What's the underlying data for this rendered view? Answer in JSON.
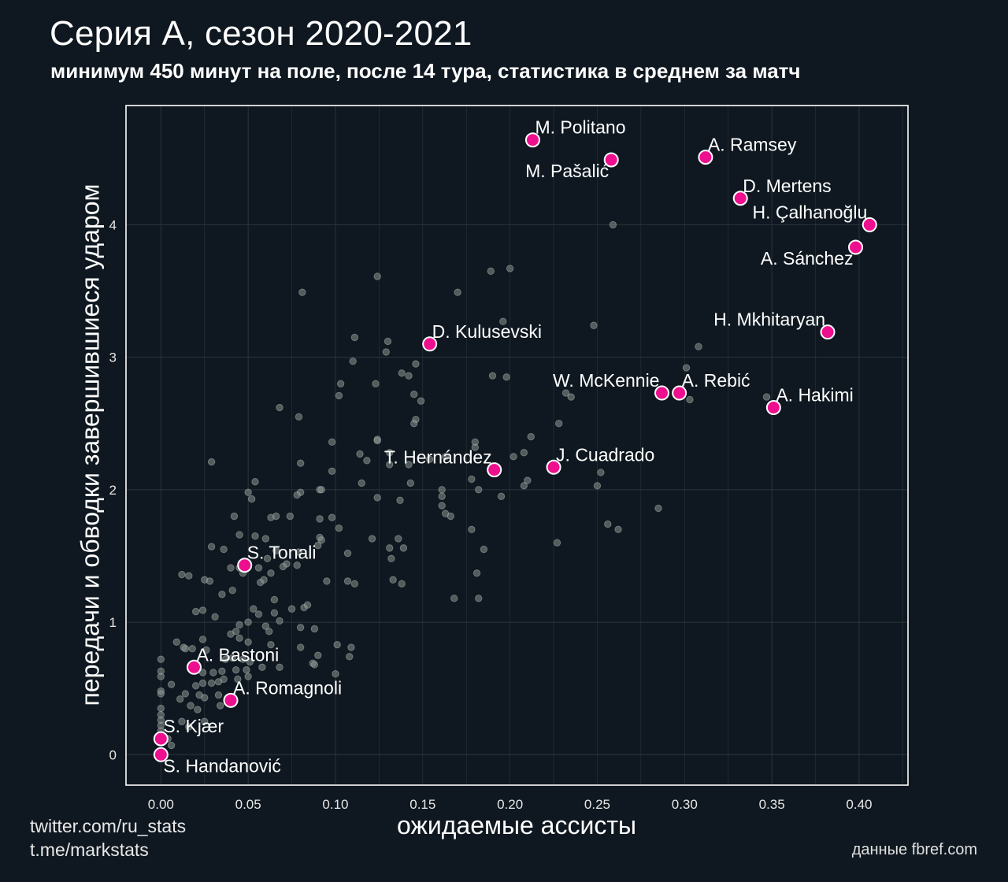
{
  "header": {
    "title": "Серия А, сезон 2020-2021",
    "subtitle": "минимум 450 минут на поле, после 14 тура, статистика в среднем за матч"
  },
  "footer": {
    "credit_twitter": "twitter.com/ru_stats",
    "credit_telegram": "t.me/markstats",
    "source": "данные fbref.com"
  },
  "colors": {
    "background": "#0f1820",
    "highlight": "#ee0f8f",
    "highlight_stroke": "#ffffff",
    "other_points": "#8a9590",
    "grid": "#2a343c",
    "frame": "#ffffff"
  },
  "chart_data": {
    "type": "scatter",
    "title": "Серия А, сезон 2020-2021",
    "subtitle": "минимум 450 минут на поле, после 14 тура, статистика в среднем за матч",
    "xlabel": "ожидаемые ассисты",
    "ylabel": "передачи и обводки завершившиеся ударом",
    "xlim": [
      -0.02,
      0.428
    ],
    "ylim": [
      -0.23,
      4.9
    ],
    "xticks": [
      0.0,
      0.05,
      0.1,
      0.15,
      0.2,
      0.25,
      0.3,
      0.35,
      0.4
    ],
    "xtick_labels": [
      "0.00",
      "0.05",
      "0.10",
      "0.15",
      "0.20",
      "0.25",
      "0.30",
      "0.35",
      "0.40"
    ],
    "yticks": [
      0,
      1,
      2,
      3,
      4
    ],
    "ytick_labels": [
      "0",
      "1",
      "2",
      "3",
      "4"
    ],
    "grid": true,
    "highlighted": [
      {
        "name": "M. Politano",
        "x": 0.213,
        "y": 4.64,
        "label_pos": "upper-right"
      },
      {
        "name": "M. Pašalić",
        "x": 0.258,
        "y": 4.49,
        "label_pos": "lower-left"
      },
      {
        "name": "A. Ramsey",
        "x": 0.312,
        "y": 4.51,
        "label_pos": "upper-right"
      },
      {
        "name": "D. Mertens",
        "x": 0.332,
        "y": 4.2,
        "label_pos": "upper-right"
      },
      {
        "name": "H. Çalhanoğlu",
        "x": 0.406,
        "y": 4.0,
        "label_pos": "upper-left"
      },
      {
        "name": "A. Sánchez",
        "x": 0.398,
        "y": 3.83,
        "label_pos": "lower-left"
      },
      {
        "name": "H. Mkhitaryan",
        "x": 0.382,
        "y": 3.19,
        "label_pos": "upper-left"
      },
      {
        "name": "D. Kulusevski",
        "x": 0.154,
        "y": 3.1,
        "label_pos": "upper-right"
      },
      {
        "name": "W. McKennie",
        "x": 0.287,
        "y": 2.73,
        "label_pos": "upper-left"
      },
      {
        "name": "A. Rebić",
        "x": 0.297,
        "y": 2.73,
        "label_pos": "upper-right"
      },
      {
        "name": "A. Hakimi",
        "x": 0.351,
        "y": 2.62,
        "label_pos": "upper-right"
      },
      {
        "name": "T. Hernández",
        "x": 0.191,
        "y": 2.15,
        "label_pos": "upper-left"
      },
      {
        "name": "J. Cuadrado",
        "x": 0.225,
        "y": 2.17,
        "label_pos": "upper-right"
      },
      {
        "name": "S. Tonali",
        "x": 0.048,
        "y": 1.43,
        "label_pos": "upper-right"
      },
      {
        "name": "A. Bastoni",
        "x": 0.019,
        "y": 0.66,
        "label_pos": "upper-right"
      },
      {
        "name": "A. Romagnoli",
        "x": 0.04,
        "y": 0.41,
        "label_pos": "upper-right"
      },
      {
        "name": "S. Kjær",
        "x": 0.0,
        "y": 0.12,
        "label_pos": "upper-right"
      },
      {
        "name": "S. Handanović",
        "x": 0.0,
        "y": 0.0,
        "label_pos": "lower-right"
      }
    ],
    "other_points": [
      [
        0.259,
        4.0
      ],
      [
        0.124,
        3.61
      ],
      [
        0.189,
        3.65
      ],
      [
        0.2,
        3.67
      ],
      [
        0.081,
        3.49
      ],
      [
        0.17,
        3.49
      ],
      [
        0.196,
        3.27
      ],
      [
        0.248,
        3.24
      ],
      [
        0.111,
        3.15
      ],
      [
        0.13,
        3.12
      ],
      [
        0.129,
        3.04
      ],
      [
        0.146,
        2.95
      ],
      [
        0.11,
        2.97
      ],
      [
        0.308,
        3.08
      ],
      [
        0.301,
        2.92
      ],
      [
        0.103,
        2.8
      ],
      [
        0.123,
        2.8
      ],
      [
        0.138,
        2.88
      ],
      [
        0.142,
        2.86
      ],
      [
        0.19,
        2.86
      ],
      [
        0.198,
        2.85
      ],
      [
        0.145,
        2.72
      ],
      [
        0.149,
        2.67
      ],
      [
        0.102,
        2.71
      ],
      [
        0.232,
        2.73
      ],
      [
        0.235,
        2.7
      ],
      [
        0.303,
        2.68
      ],
      [
        0.347,
        2.7
      ],
      [
        0.068,
        2.62
      ],
      [
        0.079,
        2.55
      ],
      [
        0.146,
        2.53
      ],
      [
        0.145,
        2.5
      ],
      [
        0.228,
        2.5
      ],
      [
        0.212,
        2.4
      ],
      [
        0.098,
        2.36
      ],
      [
        0.18,
        2.36
      ],
      [
        0.18,
        2.32
      ],
      [
        0.124,
        2.38
      ],
      [
        0.124,
        2.37
      ],
      [
        0.114,
        2.27
      ],
      [
        0.118,
        2.22
      ],
      [
        0.131,
        2.28
      ],
      [
        0.154,
        2.23
      ],
      [
        0.163,
        2.25
      ],
      [
        0.208,
        2.28
      ],
      [
        0.202,
        2.25
      ],
      [
        0.029,
        2.21
      ],
      [
        0.08,
        2.2
      ],
      [
        0.131,
        2.19
      ],
      [
        0.142,
        2.19
      ],
      [
        0.252,
        2.13
      ],
      [
        0.098,
        2.14
      ],
      [
        0.115,
        2.05
      ],
      [
        0.143,
        2.05
      ],
      [
        0.178,
        2.08
      ],
      [
        0.182,
        2.0
      ],
      [
        0.161,
        2.0
      ],
      [
        0.21,
        2.07
      ],
      [
        0.208,
        2.03
      ],
      [
        0.25,
        2.03
      ],
      [
        0.054,
        2.06
      ],
      [
        0.05,
        1.98
      ],
      [
        0.08,
        1.98
      ],
      [
        0.091,
        2.0
      ],
      [
        0.092,
        2.0
      ],
      [
        0.078,
        1.96
      ],
      [
        0.052,
        1.93
      ],
      [
        0.124,
        1.94
      ],
      [
        0.137,
        1.92
      ],
      [
        0.161,
        1.95
      ],
      [
        0.161,
        1.88
      ],
      [
        0.163,
        1.82
      ],
      [
        0.166,
        1.8
      ],
      [
        0.195,
        1.95
      ],
      [
        0.285,
        1.86
      ],
      [
        0.042,
        1.8
      ],
      [
        0.063,
        1.79
      ],
      [
        0.066,
        1.8
      ],
      [
        0.074,
        1.8
      ],
      [
        0.091,
        1.78
      ],
      [
        0.098,
        1.79
      ],
      [
        0.178,
        1.7
      ],
      [
        0.102,
        1.71
      ],
      [
        0.256,
        1.74
      ],
      [
        0.262,
        1.7
      ],
      [
        0.045,
        1.66
      ],
      [
        0.054,
        1.65
      ],
      [
        0.06,
        1.63
      ],
      [
        0.091,
        1.64
      ],
      [
        0.092,
        1.62
      ],
      [
        0.121,
        1.63
      ],
      [
        0.136,
        1.63
      ],
      [
        0.131,
        1.56
      ],
      [
        0.139,
        1.56
      ],
      [
        0.185,
        1.55
      ],
      [
        0.227,
        1.6
      ],
      [
        0.029,
        1.57
      ],
      [
        0.036,
        1.55
      ],
      [
        0.066,
        1.54
      ],
      [
        0.079,
        1.53
      ],
      [
        0.09,
        1.58
      ],
      [
        0.107,
        1.52
      ],
      [
        0.132,
        1.48
      ],
      [
        0.061,
        1.48
      ],
      [
        0.072,
        1.44
      ],
      [
        0.07,
        1.42
      ],
      [
        0.078,
        1.43
      ],
      [
        0.045,
        1.41
      ],
      [
        0.047,
        1.37
      ],
      [
        0.056,
        1.41
      ],
      [
        0.063,
        1.37
      ],
      [
        0.012,
        1.36
      ],
      [
        0.016,
        1.35
      ],
      [
        0.04,
        1.41
      ],
      [
        0.181,
        1.37
      ],
      [
        0.025,
        1.32
      ],
      [
        0.028,
        1.31
      ],
      [
        0.057,
        1.3
      ],
      [
        0.059,
        1.32
      ],
      [
        0.095,
        1.31
      ],
      [
        0.107,
        1.31
      ],
      [
        0.111,
        1.29
      ],
      [
        0.133,
        1.32
      ],
      [
        0.138,
        1.29
      ],
      [
        0.041,
        1.24
      ],
      [
        0.035,
        1.21
      ],
      [
        0.065,
        1.17
      ],
      [
        0.168,
        1.18
      ],
      [
        0.182,
        1.18
      ],
      [
        0.053,
        1.1
      ],
      [
        0.075,
        1.1
      ],
      [
        0.082,
        1.11
      ],
      [
        0.084,
        1.13
      ],
      [
        0.02,
        1.08
      ],
      [
        0.024,
        1.09
      ],
      [
        0.056,
        1.06
      ],
      [
        0.065,
        1.07
      ],
      [
        0.031,
        1.04
      ],
      [
        0.068,
        1.01
      ],
      [
        0.045,
        0.98
      ],
      [
        0.043,
        0.93
      ],
      [
        0.05,
        1.0
      ],
      [
        0.06,
        0.97
      ],
      [
        0.062,
        0.93
      ],
      [
        0.08,
        0.96
      ],
      [
        0.088,
        0.95
      ],
      [
        0.04,
        0.91
      ],
      [
        0.045,
        0.88
      ],
      [
        0.024,
        0.87
      ],
      [
        0.009,
        0.85
      ],
      [
        0.013,
        0.81
      ],
      [
        0.014,
        0.8
      ],
      [
        0.018,
        0.8
      ],
      [
        0.05,
        0.85
      ],
      [
        0.063,
        0.83
      ],
      [
        0.08,
        0.81
      ],
      [
        0.101,
        0.83
      ],
      [
        0.109,
        0.81
      ],
      [
        0.108,
        0.74
      ],
      [
        0.09,
        0.75
      ],
      [
        0.0,
        0.72
      ],
      [
        0.026,
        0.79
      ],
      [
        0.037,
        0.72
      ],
      [
        0.041,
        0.73
      ],
      [
        0.047,
        0.72
      ],
      [
        0.051,
        0.7
      ],
      [
        0.087,
        0.69
      ],
      [
        0.088,
        0.68
      ],
      [
        0.0,
        0.63
      ],
      [
        0.0,
        0.59
      ],
      [
        0.024,
        0.62
      ],
      [
        0.03,
        0.62
      ],
      [
        0.035,
        0.63
      ],
      [
        0.043,
        0.64
      ],
      [
        0.049,
        0.64
      ],
      [
        0.058,
        0.66
      ],
      [
        0.068,
        0.66
      ],
      [
        0.1,
        0.61
      ],
      [
        0.006,
        0.53
      ],
      [
        0.02,
        0.52
      ],
      [
        0.024,
        0.54
      ],
      [
        0.029,
        0.54
      ],
      [
        0.033,
        0.55
      ],
      [
        0.036,
        0.57
      ],
      [
        0.044,
        0.57
      ],
      [
        0.05,
        0.59
      ],
      [
        0.0,
        0.48
      ],
      [
        0.0,
        0.46
      ],
      [
        0.014,
        0.46
      ],
      [
        0.022,
        0.45
      ],
      [
        0.025,
        0.43
      ],
      [
        0.033,
        0.45
      ],
      [
        0.011,
        0.42
      ],
      [
        0.017,
        0.37
      ],
      [
        0.021,
        0.34
      ],
      [
        0.034,
        0.37
      ],
      [
        0.0,
        0.35
      ],
      [
        0.0,
        0.3
      ],
      [
        0.0,
        0.26
      ],
      [
        0.0,
        0.22
      ],
      [
        0.0,
        0.18
      ],
      [
        0.012,
        0.25
      ],
      [
        0.016,
        0.21
      ],
      [
        0.025,
        0.25
      ],
      [
        0.006,
        0.07
      ],
      [
        0.004,
        0.12
      ]
    ]
  }
}
